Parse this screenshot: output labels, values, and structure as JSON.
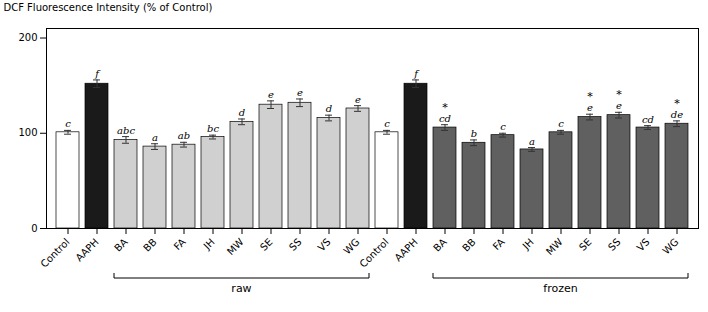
{
  "chart_data": {
    "type": "bar",
    "ylabel": "DCF Fluorescence Intensity (% of Control)",
    "categories": [
      "Control",
      "AAPH",
      "BA",
      "BB",
      "FA",
      "JH",
      "MW",
      "SE",
      "SS",
      "VS",
      "WG",
      "Control",
      "AAPH",
      "BA",
      "BB",
      "FA",
      "JH",
      "MW",
      "SE",
      "SS",
      "VS",
      "WG"
    ],
    "values": [
      101,
      152,
      93,
      86,
      88,
      96,
      112,
      130,
      132,
      116,
      126,
      101,
      152,
      106,
      90,
      98,
      83,
      101,
      117,
      119,
      106,
      110
    ],
    "errors": [
      2.0,
      4.0,
      3.5,
      3.0,
      2.5,
      2.0,
      3.0,
      4.0,
      4.0,
      3.0,
      3.0,
      2.0,
      4.0,
      3.0,
      3.0,
      2.0,
      2.0,
      2.0,
      3.0,
      3.0,
      2.0,
      3.0
    ],
    "colors": [
      "#ffffff",
      "#1a1a1a",
      "#d0d0d0",
      "#d0d0d0",
      "#d0d0d0",
      "#d0d0d0",
      "#d0d0d0",
      "#d0d0d0",
      "#d0d0d0",
      "#d0d0d0",
      "#d0d0d0",
      "#ffffff",
      "#1a1a1a",
      "#606060",
      "#606060",
      "#606060",
      "#606060",
      "#606060",
      "#606060",
      "#606060",
      "#606060",
      "#606060"
    ],
    "letters": [
      "c",
      "f",
      "abc",
      "a",
      "ab",
      "bc",
      "d",
      "e",
      "e",
      "d",
      "e",
      "c",
      "f",
      "cd",
      "b",
      "c",
      "a",
      "c",
      "e",
      "e",
      "cd",
      "de"
    ],
    "stars": [
      null,
      null,
      null,
      null,
      null,
      null,
      null,
      null,
      null,
      null,
      null,
      null,
      null,
      "*",
      null,
      null,
      null,
      null,
      "*",
      "*",
      null,
      "*"
    ],
    "groups": [
      null,
      null,
      "raw",
      "raw",
      "raw",
      "raw",
      "raw",
      "raw",
      "raw",
      "raw",
      "raw",
      null,
      null,
      "frozen",
      "frozen",
      "frozen",
      "frozen",
      "frozen",
      "frozen",
      "frozen",
      "frozen",
      "frozen"
    ],
    "ylim": [
      0,
      210
    ],
    "yticks": [
      0,
      100,
      200
    ]
  }
}
